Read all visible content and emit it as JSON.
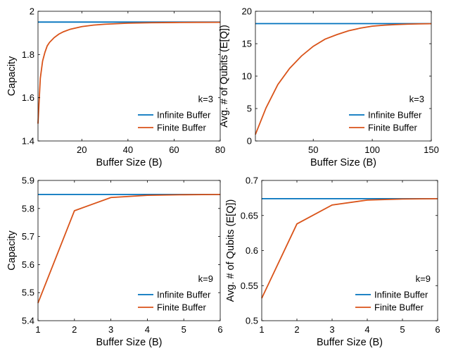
{
  "chart_data": [
    {
      "type": "line",
      "xlabel": "Buffer Size (B)",
      "ylabel": "Capacity",
      "xlim": [
        1,
        80
      ],
      "ylim": [
        1.4,
        2
      ],
      "xticks": [
        20,
        40,
        60,
        80
      ],
      "yticks": [
        1.4,
        1.6,
        1.8,
        2
      ],
      "ytick_labels": [
        "1.4",
        "1.6",
        "1.8",
        "2"
      ],
      "annotation": "k=3",
      "legend_position": "bottom-right",
      "grid": false,
      "series": [
        {
          "name": "Infinite Buffer",
          "color": "#0072BD",
          "x": [
            1,
            80
          ],
          "y": [
            1.95,
            1.95
          ]
        },
        {
          "name": "Finite Buffer",
          "color": "#D95319",
          "x": [
            1,
            2,
            3,
            4,
            5,
            6,
            8,
            10,
            12,
            15,
            20,
            25,
            30,
            40,
            50,
            60,
            70,
            80
          ],
          "y": [
            1.48,
            1.69,
            1.77,
            1.81,
            1.84,
            1.856,
            1.878,
            1.894,
            1.905,
            1.917,
            1.929,
            1.936,
            1.94,
            1.945,
            1.947,
            1.948,
            1.9488,
            1.949
          ]
        }
      ]
    },
    {
      "type": "line",
      "xlabel": "Buffer Size (B)",
      "ylabel": "Avg. # of Qubits (E[Q])",
      "xlim": [
        1,
        150
      ],
      "ylim": [
        0,
        20
      ],
      "xticks": [
        50,
        100,
        150
      ],
      "yticks": [
        0,
        5,
        10,
        15,
        20
      ],
      "ytick_labels": [
        "0",
        "5",
        "10",
        "15",
        "20"
      ],
      "annotation": "k=3",
      "legend_position": "bottom-right",
      "grid": false,
      "series": [
        {
          "name": "Infinite Buffer",
          "color": "#0072BD",
          "x": [
            1,
            150
          ],
          "y": [
            18.1,
            18.1
          ]
        },
        {
          "name": "Finite Buffer",
          "color": "#D95319",
          "x": [
            1,
            10,
            20,
            30,
            40,
            50,
            60,
            70,
            80,
            90,
            100,
            110,
            120,
            130,
            140,
            150
          ],
          "y": [
            1.0,
            5.1,
            8.7,
            11.2,
            13.1,
            14.6,
            15.7,
            16.4,
            17.0,
            17.4,
            17.7,
            17.85,
            17.95,
            18.02,
            18.06,
            18.08
          ]
        }
      ]
    },
    {
      "type": "line",
      "xlabel": "Buffer Size (B)",
      "ylabel": "Capacity",
      "xlim": [
        1,
        6
      ],
      "ylim": [
        5.4,
        5.9
      ],
      "xticks": [
        1,
        2,
        3,
        4,
        5,
        6
      ],
      "yticks": [
        5.4,
        5.5,
        5.6,
        5.7,
        5.8,
        5.9
      ],
      "ytick_labels": [
        "5.4",
        "5.5",
        "5.6",
        "5.7",
        "5.8",
        "5.9"
      ],
      "annotation": "k=9",
      "legend_position": "bottom-right",
      "grid": false,
      "series": [
        {
          "name": "Infinite Buffer",
          "color": "#0072BD",
          "x": [
            1,
            6
          ],
          "y": [
            5.85,
            5.85
          ]
        },
        {
          "name": "Finite Buffer",
          "color": "#D95319",
          "x": [
            1,
            2,
            3,
            4,
            5,
            6
          ],
          "y": [
            5.463,
            5.792,
            5.839,
            5.847,
            5.849,
            5.85
          ]
        }
      ]
    },
    {
      "type": "line",
      "xlabel": "Buffer Size (B)",
      "ylabel": "Avg. # of Qubits (E[Q])",
      "xlim": [
        1,
        6
      ],
      "ylim": [
        0.5,
        0.7
      ],
      "xticks": [
        1,
        2,
        3,
        4,
        5,
        6
      ],
      "yticks": [
        0.5,
        0.55,
        0.6,
        0.65,
        0.7
      ],
      "ytick_labels": [
        "0.5",
        "0.55",
        "0.6",
        "0.65",
        "0.7"
      ],
      "annotation": "k=9",
      "legend_position": "bottom-right",
      "grid": false,
      "series": [
        {
          "name": "Infinite Buffer",
          "color": "#0072BD",
          "x": [
            1,
            6
          ],
          "y": [
            0.674,
            0.674
          ]
        },
        {
          "name": "Finite Buffer",
          "color": "#D95319",
          "x": [
            1,
            2,
            3,
            4,
            5,
            6
          ],
          "y": [
            0.532,
            0.638,
            0.665,
            0.672,
            0.6735,
            0.674
          ]
        }
      ]
    }
  ]
}
